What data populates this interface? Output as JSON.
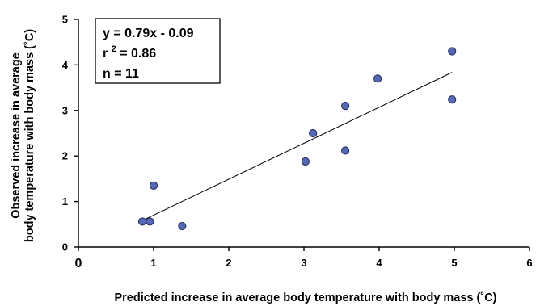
{
  "chart_data": {
    "type": "scatter",
    "xlabel": "Predicted increase in average body temperature with body mass (˚C)",
    "ylabel_lines": [
      "Observed increase in average",
      "body temperature with body mass (˚C)"
    ],
    "xlim": [
      0,
      6
    ],
    "ylim": [
      0,
      5
    ],
    "x_ticks": [
      "0",
      "1",
      "2",
      "3",
      "4",
      "5",
      "6"
    ],
    "y_ticks": [
      "0",
      "1",
      "2",
      "3",
      "4",
      "5"
    ],
    "grid": false,
    "points": [
      {
        "x": 0.85,
        "y": 0.56
      },
      {
        "x": 0.95,
        "y": 0.56
      },
      {
        "x": 1.0,
        "y": 1.35
      },
      {
        "x": 1.38,
        "y": 0.46
      },
      {
        "x": 3.02,
        "y": 1.88
      },
      {
        "x": 3.12,
        "y": 2.5
      },
      {
        "x": 3.55,
        "y": 3.1
      },
      {
        "x": 3.55,
        "y": 2.12
      },
      {
        "x": 3.98,
        "y": 3.7
      },
      {
        "x": 4.97,
        "y": 4.3
      },
      {
        "x": 4.97,
        "y": 3.24
      }
    ],
    "trendline": {
      "slope": 0.79,
      "intercept": -0.09,
      "x_range": [
        0.85,
        4.97
      ]
    },
    "annotation": {
      "lines": [
        "y = 0.79x - 0.09",
        "r ",
        "2",
        " = 0.86",
        "n = 11"
      ]
    }
  }
}
